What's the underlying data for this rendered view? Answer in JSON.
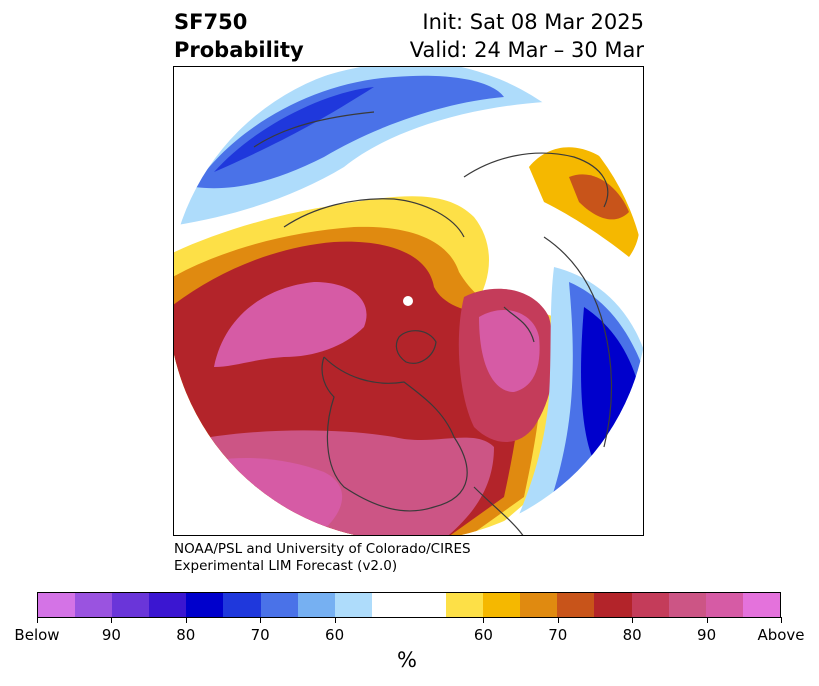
{
  "title": {
    "variable": "SF750",
    "subtitle": "Probability",
    "init": "Init: Sat 08 Mar 2025",
    "valid": "Valid: 24 Mar – 30 Mar"
  },
  "credit": {
    "line1": "NOAA/PSL and University of Colorado/CIRES",
    "line2": "Experimental LIM Forecast (v2.0)"
  },
  "projection": "north-polar-stereographic",
  "colorbar": {
    "unit": "%",
    "colors": [
      "#d473e6",
      "#9a53e0",
      "#6a35d9",
      "#3b16d1",
      "#0000cc",
      "#1f38dc",
      "#4a72e8",
      "#76b0f2",
      "#aedcfb",
      "#ffffff",
      "#ffffff",
      "#fde047",
      "#f5b800",
      "#e08a10",
      "#c8541a",
      "#b3242a",
      "#c43c5a",
      "#cc5585",
      "#d65ba5",
      "#e472dc"
    ],
    "tick_labels": [
      "Below",
      "90",
      "80",
      "70",
      "60",
      "60",
      "70",
      "80",
      "90",
      "Above"
    ]
  },
  "legend_colors": {
    "below_90": "#9a53e0",
    "below_70": "#1f38dc",
    "below_60": "#aedcfb",
    "neutral": "#ffffff",
    "above_60": "#fde047",
    "above_70": "#e08a10",
    "above_80": "#b3242a",
    "above_90": "#d65ba5"
  }
}
